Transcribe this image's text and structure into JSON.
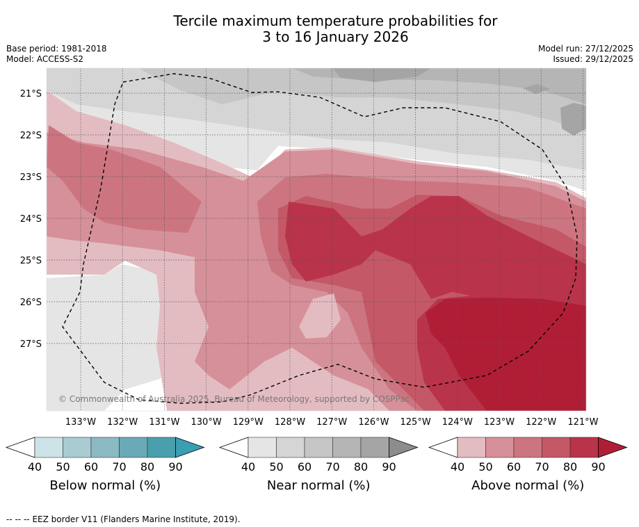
{
  "title": {
    "line1": "Tercile maximum temperature probabilities for",
    "line2": "3 to 16 January 2026"
  },
  "meta_left": {
    "base_period": "Base period: 1981-2018",
    "model": "Model: ACCESS-S2"
  },
  "meta_right": {
    "model_run": "Model run: 27/12/2025",
    "issued": "Issued: 29/12/2025"
  },
  "map": {
    "lat_labels": [
      "21°S",
      "22°S",
      "23°S",
      "24°S",
      "25°S",
      "26°S",
      "27°S"
    ],
    "lon_labels": [
      "133°W",
      "132°W",
      "131°W",
      "130°W",
      "129°W",
      "128°W",
      "127°W",
      "126°W",
      "125°W",
      "124°W",
      "123°W",
      "122°W",
      "121°W"
    ],
    "copyright": "© Commonwealth of Australia 2025, Bureau of Meteorology, supported by COSPPac"
  },
  "legends": [
    {
      "title": "Below normal (%)",
      "ticks": [
        "40",
        "50",
        "60",
        "70",
        "80",
        "90"
      ],
      "colors": [
        "#cde3e8",
        "#a9cbd2",
        "#8bb9c4",
        "#6aa9b7",
        "#4a9fae",
        "#3a9fb2"
      ]
    },
    {
      "title": "Near normal (%)",
      "ticks": [
        "40",
        "50",
        "60",
        "70",
        "80",
        "90"
      ],
      "colors": [
        "#e5e5e5",
        "#d5d5d5",
        "#c6c6c6",
        "#b5b5b5",
        "#a5a5a5",
        "#8c8c8c"
      ]
    },
    {
      "title": "Above normal (%)",
      "ticks": [
        "40",
        "50",
        "60",
        "70",
        "80",
        "90"
      ],
      "colors": [
        "#e3bcc1",
        "#d69099",
        "#cc7580",
        "#c45867",
        "#b9334a",
        "#b01e36"
      ]
    }
  ],
  "footnote": {
    "symbol": "-- -- --",
    "text": "EEZ border V11 (Flanders Marine Institute, 2019)."
  }
}
